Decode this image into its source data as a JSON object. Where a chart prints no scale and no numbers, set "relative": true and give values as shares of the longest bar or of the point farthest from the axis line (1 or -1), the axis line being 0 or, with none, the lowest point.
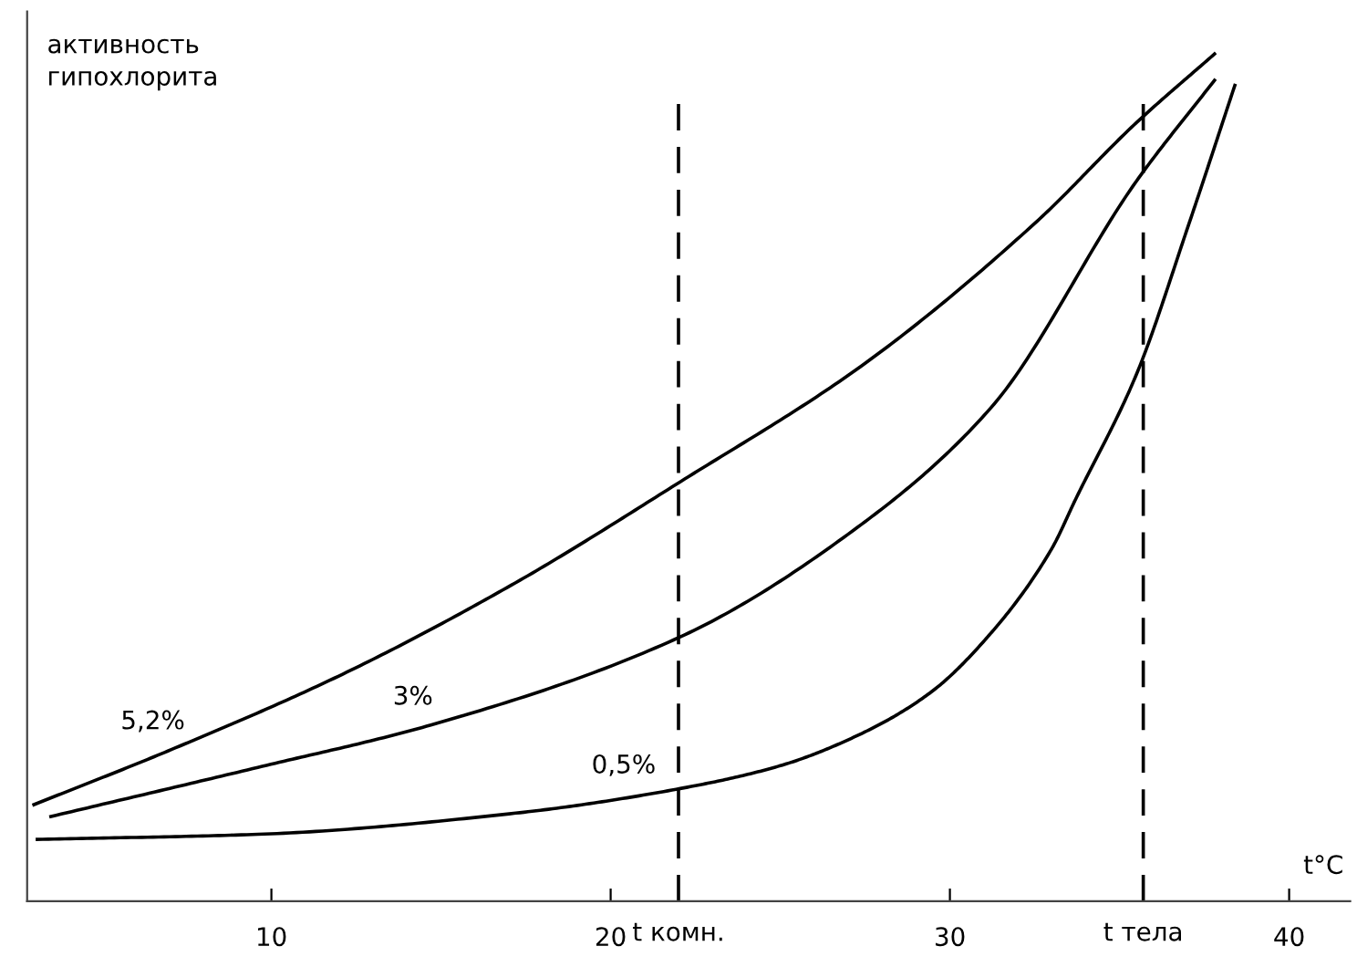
{
  "chart_data": {
    "type": "line",
    "relative": true,
    "xlabel": "t°C",
    "ylabel": "активность\nгипохлорита",
    "xlim": [
      2.8,
      41.8
    ],
    "xticks": [
      10,
      20,
      30,
      40
    ],
    "grid": false,
    "marker": "none",
    "line_style": "solid",
    "series": [
      {
        "name": "5,2%",
        "color": "#000000",
        "x": [
          3.0,
          7.05,
          12.1,
          17.2,
          22.05,
          27.4,
          32.5,
          35.5,
          37.8
        ],
        "values": [
          0.114,
          0.179,
          0.268,
          0.376,
          0.495,
          0.632,
          0.8,
          0.919,
          1.0
        ]
      },
      {
        "name": "3%",
        "color": "#000000",
        "x": [
          3.5,
          9.6,
          14.7,
          22.05,
          27.4,
          31.2,
          35.5,
          37.8
        ],
        "values": [
          0.1,
          0.158,
          0.208,
          0.312,
          0.445,
          0.582,
          0.85,
          0.969
        ]
      },
      {
        "name": "0,5%",
        "color": "#000000",
        "x": [
          3.1,
          9.6,
          17.2,
          22.05,
          25.0,
          27.4,
          29.45,
          31.2,
          33.0,
          33.7,
          35.5,
          37.05,
          38.4
        ],
        "values": [
          0.073,
          0.079,
          0.104,
          0.133,
          0.16,
          0.198,
          0.247,
          0.316,
          0.416,
          0.474,
          0.622,
          0.8,
          0.963
        ]
      }
    ],
    "ref_lines": [
      {
        "axis": "x",
        "value": 22,
        "label": "t комн.",
        "color": "#000000",
        "line_style": "dashed"
      },
      {
        "axis": "x",
        "value": 35.7,
        "label": "t тела",
        "color": "#000000",
        "line_style": "dashed"
      }
    ]
  }
}
